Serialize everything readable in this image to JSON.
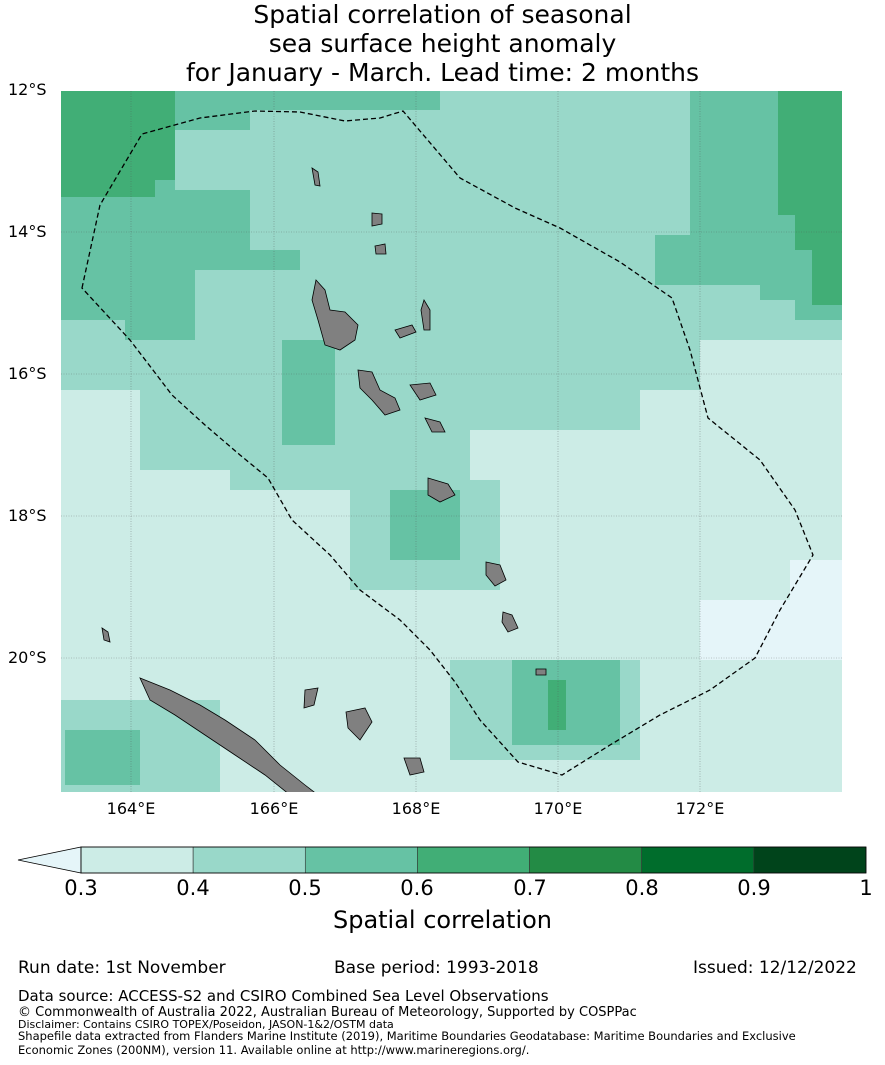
{
  "title": {
    "line1": "Spatial correlation of seasonal",
    "line2": "sea surface height anomaly",
    "line3": "for January - March. Lead time: 2 months"
  },
  "map": {
    "lat_labels": [
      "12°S",
      "14°S",
      "16°S",
      "18°S",
      "20°S"
    ],
    "lon_labels": [
      "164°E",
      "166°E",
      "168°E",
      "170°E",
      "172°E"
    ],
    "land_color": "#808080",
    "boundary_style": "dashed"
  },
  "colorbar": {
    "ticks": [
      "0.3",
      "0.4",
      "0.5",
      "0.6",
      "0.7",
      "0.8",
      "0.9",
      "1"
    ],
    "colors": [
      "#e5f5f9",
      "#ccece6",
      "#99d8c9",
      "#66c2a4",
      "#41ae76",
      "#238b45",
      "#006d2c",
      "#00441b"
    ],
    "label": "Spatial correlation"
  },
  "meta": {
    "run_date": "Run date: 1st November",
    "base_period": "Base period: 1993-2018",
    "issued": "Issued: 12/12/2022"
  },
  "footer": {
    "source": "Data source: ACCESS-S2 and CSIRO Combined Sea Level Observations",
    "copyright": "© Commonwealth of Australia 2022, Australian Bureau of Meteorology, Supported by COSPPac",
    "disclaimer": "Disclaimer: Contains CSIRO TOPEX/Poseidon, JASON-1&2/OSTM data",
    "shapefile1": "Shapefile data extracted from Flanders Marine Institute (2019), Maritime Boundaries Geodatabase: Maritime Boundaries and Exclusive",
    "shapefile2": "Economic Zones (200NM), version 11. Available online at http://www.marineregions.org/."
  }
}
